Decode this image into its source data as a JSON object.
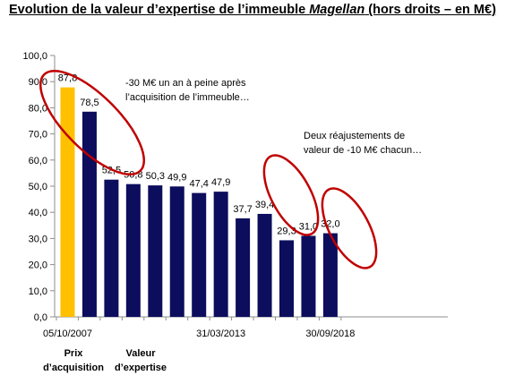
{
  "title": {
    "before": "Evolution de la valeur d’expertise de l’immeuble ",
    "italic": "Magellan",
    "after": " (hors droits – en M€)"
  },
  "colors": {
    "highlight_bar": "#FFC000",
    "bar": "#0D0D5E",
    "ellipse": "#C00000"
  },
  "chart_data": {
    "type": "bar",
    "title": "Evolution de la valeur d’expertise de l’immeuble Magellan (hors droits – en M€)",
    "xlabel": "",
    "ylabel": "",
    "ylim": [
      0,
      100
    ],
    "ytick_labels": [
      "0,0",
      "10,0",
      "20,0",
      "30,0",
      "40,0",
      "50,0",
      "60,0",
      "70,0",
      "80,0",
      "90,0",
      "100,0"
    ],
    "values": [
      87.8,
      78.5,
      52.5,
      50.8,
      50.3,
      49.9,
      47.4,
      47.9,
      37.7,
      39.4,
      29.3,
      31.0,
      32.0
    ],
    "value_labels": [
      "87,8",
      "78,5",
      "52,5",
      "50,8",
      "50,3",
      "49,9",
      "47,4",
      "47,9",
      "37,7",
      "39,4",
      "29,3",
      "31,0",
      "32,0"
    ],
    "x_tick_labels": [
      {
        "index": 0,
        "label": "05/10/2007"
      },
      {
        "index": 7,
        "label": "31/03/2013"
      },
      {
        "index": 12,
        "label": "30/09/2018"
      }
    ],
    "highlight_index": 0,
    "grid": false,
    "legend": "none"
  },
  "captions": {
    "prix": [
      "Prix",
      "d’acquisition"
    ],
    "valeur": [
      "Valeur",
      "d’expertise"
    ]
  },
  "annotations": {
    "first": [
      "-30 M€ un an à peine après",
      "l’acquisition de l’immeuble…"
    ],
    "second": [
      "Deux réajustements de",
      "valeur de -10 M€  chacun…"
    ]
  }
}
